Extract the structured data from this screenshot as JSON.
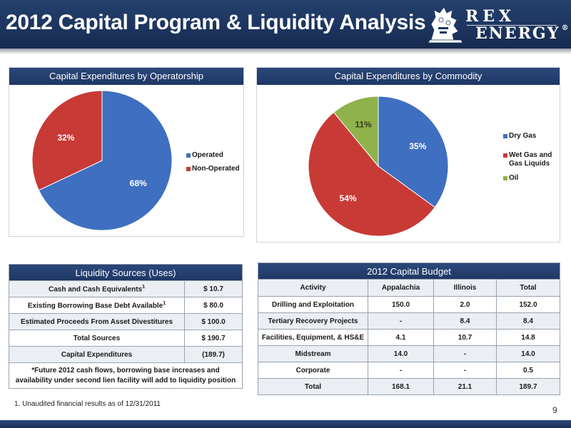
{
  "header": {
    "title": "2012 Capital Program & Liquidity Analysis",
    "logo_line1": "REX",
    "logo_line2": "ENERGY",
    "logo_mark": "®"
  },
  "colors": {
    "header_bg": "#1d3560",
    "blue_slice": "#3f6fc0",
    "red_slice": "#c83a36",
    "green_slice": "#8fb24a"
  },
  "chart_data": [
    {
      "type": "pie",
      "title": "Capital Expenditures by Operatorship",
      "categories": [
        "Operated",
        "Non-Operated"
      ],
      "values": [
        68,
        32
      ],
      "labels": [
        "68%",
        "32%"
      ],
      "legend": "right"
    },
    {
      "type": "pie",
      "title": "Capital Expenditures by Commodity",
      "categories": [
        "Dry Gas",
        "Wet Gas and Gas Liquids",
        "Oil"
      ],
      "values": [
        35,
        54,
        11
      ],
      "labels": [
        "35%",
        "54%",
        "11%"
      ],
      "legend": "right"
    }
  ],
  "liquidity": {
    "title": "Liquidity Sources (Uses)",
    "rows": [
      {
        "label": "Cash and Cash Equivalents",
        "sup": "1",
        "value": "$ 10.7"
      },
      {
        "label": "Existing Borrowing Base Debt Available",
        "sup": "1",
        "value": "$ 80.0"
      },
      {
        "label": "Estimated Proceeds From Asset Divestitures",
        "sup": "",
        "value": "$ 100.0"
      },
      {
        "label": "Total Sources",
        "sup": "",
        "value": "$ 190.7"
      },
      {
        "label": "Capital Expenditures",
        "sup": "",
        "value": "(189.7)"
      }
    ],
    "note_line1": "*Future 2012 cash flows, borrowing base increases and",
    "note_line2": "availability under second lien facility will add to liquidity position"
  },
  "budget": {
    "title": "2012 Capital Budget",
    "columns": [
      "Activity",
      "Appalachia",
      "Illinois",
      "Total"
    ],
    "rows": [
      [
        "Drilling and Exploitation",
        "150.0",
        "2.0",
        "152.0"
      ],
      [
        "Tertiary Recovery Projects",
        "-",
        "8.4",
        "8.4"
      ],
      [
        "Facilities, Equipment, & HS&E",
        "4.1",
        "10.7",
        "14.8"
      ],
      [
        "Midstream",
        "14.0",
        "-",
        "14.0"
      ],
      [
        "Corporate",
        "-",
        "-",
        "0.5"
      ],
      [
        "Total",
        "168.1",
        "21.1",
        "189.7"
      ]
    ]
  },
  "footnote": "1. Unaudited financial results as of 12/31/2011",
  "page_number": "9"
}
